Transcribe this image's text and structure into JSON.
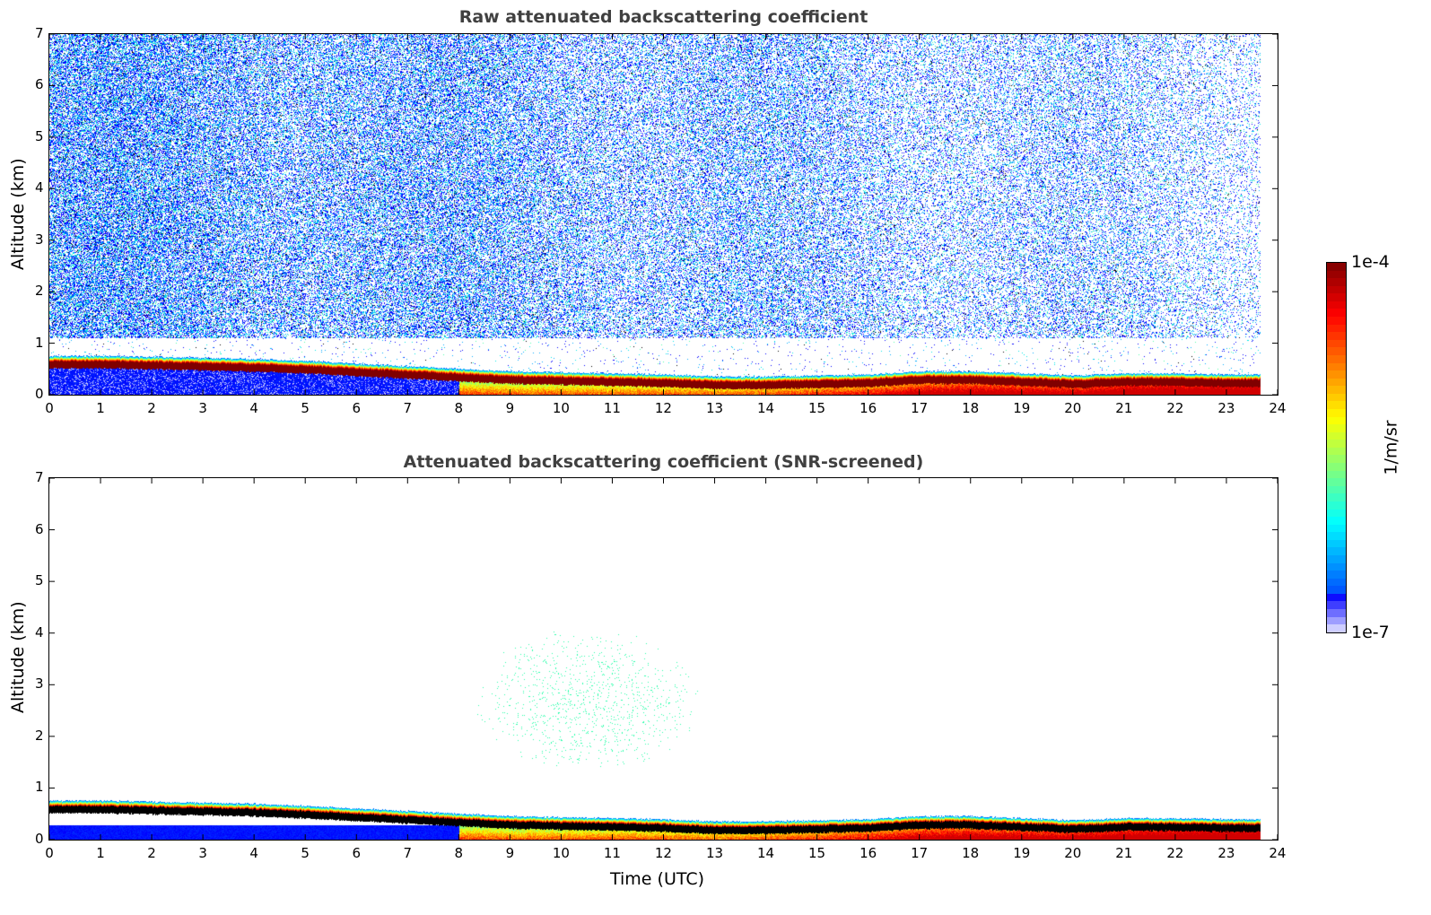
{
  "chart_data": [
    {
      "type": "heatmap",
      "title": "Raw attenuated backscattering coefficient",
      "xlabel": "",
      "ylabel": "Altitude (km)",
      "xlim": [
        0,
        24
      ],
      "ylim": [
        0,
        7
      ],
      "xticks": [
        "0",
        "1",
        "2",
        "3",
        "4",
        "5",
        "6",
        "7",
        "8",
        "9",
        "10",
        "11",
        "12",
        "13",
        "14",
        "15",
        "16",
        "17",
        "18",
        "19",
        "20",
        "21",
        "22",
        "23",
        "24"
      ],
      "yticks": [
        "0",
        "1",
        "2",
        "3",
        "4",
        "5",
        "6",
        "7"
      ],
      "data_end_hour": 23.65,
      "aerosol_layer_hours": [
        0,
        1,
        2,
        3,
        4,
        5,
        6,
        7,
        8,
        9,
        10,
        11,
        12,
        13,
        14,
        15,
        16,
        17,
        18,
        19,
        20,
        21,
        22,
        23,
        23.65
      ],
      "aerosol_layer_peak_km": [
        0.6,
        0.6,
        0.58,
        0.56,
        0.54,
        0.5,
        0.45,
        0.4,
        0.35,
        0.3,
        0.28,
        0.26,
        0.24,
        0.2,
        0.2,
        0.22,
        0.24,
        0.3,
        0.3,
        0.26,
        0.22,
        0.26,
        0.26,
        0.24,
        0.24
      ],
      "noise_floor_km": 1.1,
      "screened": false
    },
    {
      "type": "heatmap",
      "title": "Attenuated backscattering coefficient (SNR-screened)",
      "xlabel": "Time (UTC)",
      "ylabel": "Altitude (km)",
      "xlim": [
        0,
        24
      ],
      "ylim": [
        0,
        7
      ],
      "xticks": [
        "0",
        "1",
        "2",
        "3",
        "4",
        "5",
        "6",
        "7",
        "8",
        "9",
        "10",
        "11",
        "12",
        "13",
        "14",
        "15",
        "16",
        "17",
        "18",
        "19",
        "20",
        "21",
        "22",
        "23",
        "24"
      ],
      "yticks": [
        "0",
        "1",
        "2",
        "3",
        "4",
        "5",
        "6",
        "7"
      ],
      "data_end_hour": 23.65,
      "speckle_center": {
        "hour": 10.5,
        "km": 2.7
      },
      "screened": true
    }
  ],
  "colorbar": {
    "label": "1/m/sr",
    "max_label": "1e-4",
    "min_label": "1e-7",
    "colormap": "jet",
    "range": [
      1e-07,
      0.0001
    ]
  }
}
